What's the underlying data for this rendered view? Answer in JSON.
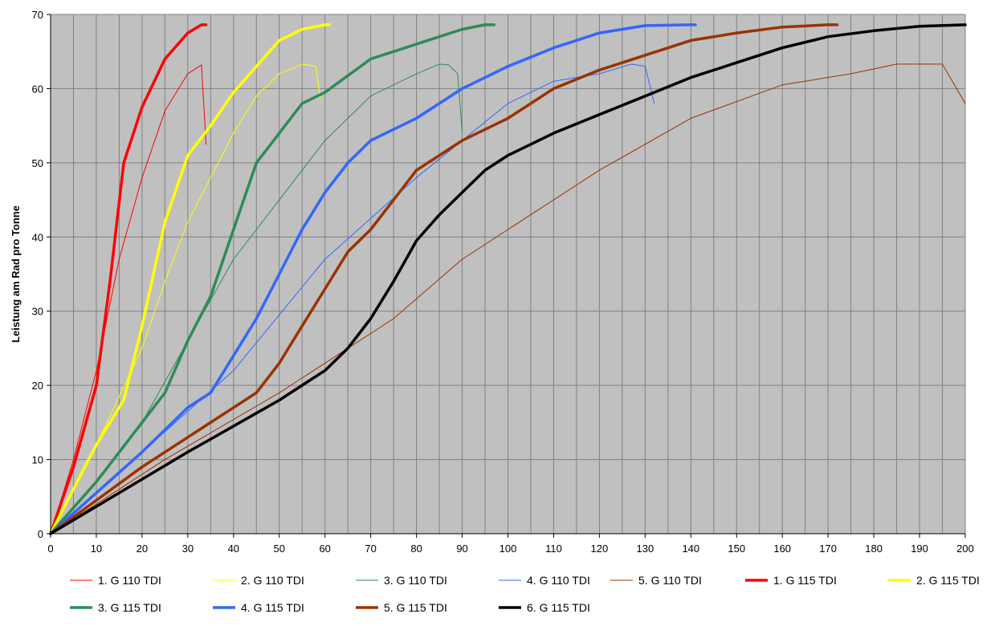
{
  "chart_data": {
    "type": "line",
    "title": "",
    "xlabel": "",
    "ylabel": "Leistung am Rad pro Tonne",
    "xlim": [
      0,
      200
    ],
    "ylim": [
      0,
      70
    ],
    "x_ticks": [
      "0",
      "10",
      "20",
      "30",
      "40",
      "50",
      "60",
      "70",
      "80",
      "90",
      "100",
      "110",
      "120",
      "130",
      "140",
      "150",
      "160",
      "170",
      "180",
      "190",
      "200"
    ],
    "y_ticks": [
      "0",
      "10",
      "20",
      "30",
      "40",
      "50",
      "60",
      "70"
    ],
    "grid": true,
    "plot_background": "#c0c0c0",
    "grid_color": "#808080",
    "legend_position": "bottom",
    "series": [
      {
        "name": "1. G 110 TDI",
        "color": "#ff0000",
        "bold": false,
        "x": [
          0,
          5,
          10,
          15,
          20,
          25,
          30,
          33,
          34
        ],
        "y": [
          0,
          10,
          22,
          37,
          48,
          57,
          62,
          63.2,
          52.5
        ]
      },
      {
        "name": "2. G 110 TDI",
        "color": "#ffff00",
        "bold": false,
        "x": [
          0,
          10,
          20,
          25,
          30,
          35,
          40,
          45,
          50,
          55,
          58,
          59
        ],
        "y": [
          0,
          12,
          25,
          34,
          42,
          48,
          54,
          59,
          62,
          63.3,
          63,
          58.5
        ]
      },
      {
        "name": "3. G 110 TDI",
        "color": "#2e8b57",
        "bold": false,
        "x": [
          0,
          10,
          20,
          30,
          40,
          50,
          60,
          70,
          80,
          85,
          87,
          89,
          90
        ],
        "y": [
          0,
          7,
          15,
          26,
          37,
          45,
          53,
          59,
          62,
          63.3,
          63.2,
          62,
          54
        ]
      },
      {
        "name": "4. G 110 TDI",
        "color": "#3366ff",
        "bold": false,
        "x": [
          0,
          20,
          40,
          60,
          80,
          100,
          110,
          120,
          127,
          130,
          132
        ],
        "y": [
          0,
          11,
          22,
          37,
          48,
          58,
          61,
          62,
          63.3,
          63,
          58
        ]
      },
      {
        "name": "5. G 110 TDI",
        "color": "#993300",
        "bold": false,
        "x": [
          0,
          25,
          50,
          75,
          90,
          100,
          120,
          140,
          160,
          175,
          185,
          195,
          200
        ],
        "y": [
          0,
          10,
          19,
          29,
          37,
          41,
          49,
          56,
          60.5,
          62,
          63.3,
          63.3,
          58
        ]
      },
      {
        "name": "1. G 115 TDI",
        "color": "#ff0000",
        "bold": true,
        "x": [
          0,
          5,
          10,
          13,
          16,
          20,
          25,
          30,
          33,
          34
        ],
        "y": [
          0,
          9,
          20,
          34,
          50,
          57.5,
          64,
          67.5,
          68.6,
          68.6
        ]
      },
      {
        "name": "2. G 115 TDI",
        "color": "#ffff00",
        "bold": true,
        "x": [
          0,
          5,
          10,
          16,
          20,
          25,
          30,
          35,
          40,
          45,
          50,
          55,
          60,
          61
        ],
        "y": [
          0,
          6,
          12,
          18,
          28,
          42,
          51,
          55,
          59.5,
          63,
          66.5,
          68,
          68.6,
          68.6
        ]
      },
      {
        "name": "3. G 115 TDI",
        "color": "#2e8b57",
        "bold": true,
        "x": [
          0,
          10,
          20,
          25,
          30,
          35,
          40,
          45,
          50,
          55,
          60,
          70,
          80,
          85,
          90,
          95,
          97
        ],
        "y": [
          0,
          7,
          15,
          19,
          26,
          32,
          41,
          50,
          54,
          58,
          59.5,
          64,
          66,
          67,
          68,
          68.6,
          68.6
        ]
      },
      {
        "name": "4. G 115 TDI",
        "color": "#3366ff",
        "bold": true,
        "x": [
          0,
          20,
          25,
          30,
          35,
          40,
          45,
          50,
          55,
          60,
          65,
          70,
          80,
          90,
          100,
          110,
          120,
          130,
          140,
          141
        ],
        "y": [
          0,
          11,
          14,
          17,
          19,
          24,
          29,
          35,
          41,
          46,
          50,
          53,
          56,
          60,
          63,
          65.5,
          67.5,
          68.5,
          68.6,
          68.6
        ]
      },
      {
        "name": "5. G 115 TDI",
        "color": "#993300",
        "bold": true,
        "x": [
          0,
          20,
          45,
          50,
          55,
          60,
          65,
          70,
          75,
          80,
          85,
          90,
          100,
          110,
          120,
          130,
          140,
          150,
          160,
          170,
          172
        ],
        "y": [
          0,
          9,
          19,
          23,
          28,
          33,
          38,
          41,
          45,
          49,
          51,
          53,
          56,
          60,
          62.5,
          64.5,
          66.5,
          67.5,
          68.3,
          68.6,
          68.6
        ]
      },
      {
        "name": "6. G 115 TDI",
        "color": "#000000",
        "bold": true,
        "x": [
          0,
          30,
          50,
          55,
          60,
          65,
          70,
          75,
          80,
          85,
          90,
          95,
          100,
          110,
          120,
          130,
          140,
          150,
          160,
          170,
          180,
          190,
          200
        ],
        "y": [
          0,
          11,
          18,
          20,
          22,
          25,
          29,
          34,
          39.5,
          43,
          46,
          49,
          51,
          54,
          56.5,
          59,
          61.5,
          63.5,
          65.5,
          67,
          67.8,
          68.4,
          68.6
        ]
      }
    ]
  }
}
